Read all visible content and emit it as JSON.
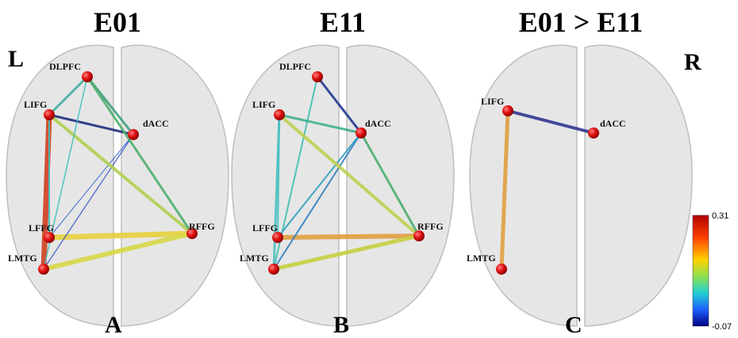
{
  "side_labels": {
    "left": "L",
    "right": "R"
  },
  "panels": [
    {
      "title": "E01",
      "letter": "A",
      "nodes": [
        "DLPFC",
        "LIFG",
        "dACC",
        "LFFG",
        "LMTG",
        "RFFG"
      ]
    },
    {
      "title": "E11",
      "letter": "B",
      "nodes": [
        "DLPFC",
        "LIFG",
        "dACC",
        "LFFG",
        "LMTG",
        "RFFG"
      ]
    },
    {
      "title": "E01 > E11",
      "letter": "C",
      "nodes": [
        "LIFG",
        "dACC",
        "LMTG"
      ]
    }
  ],
  "colorbar": {
    "max": 0.31,
    "min": -0.07
  }
}
